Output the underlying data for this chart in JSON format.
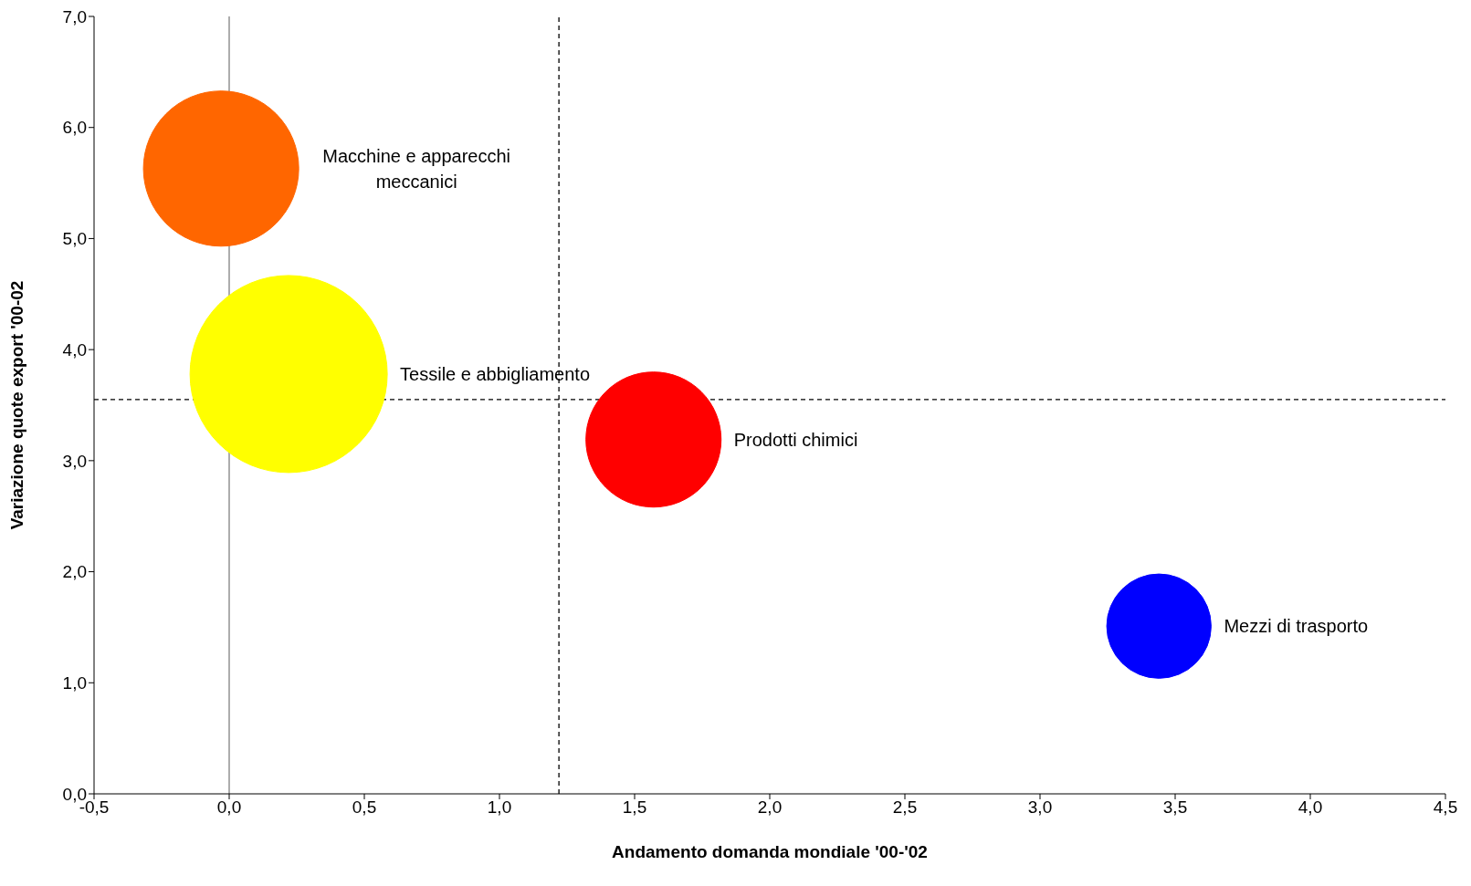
{
  "chart_data": {
    "type": "bubble",
    "xlabel": "Andamento domanda mondiale '00-'02",
    "ylabel": "Variazione quote export '00-02",
    "xlim": [
      -0.5,
      4.5
    ],
    "ylim": [
      0,
      7
    ],
    "xticks": [
      {
        "value": -0.5,
        "label": "-0,5"
      },
      {
        "value": 0,
        "label": "0,0"
      },
      {
        "value": 0.5,
        "label": "0,5"
      },
      {
        "value": 1,
        "label": "1,0"
      },
      {
        "value": 1.5,
        "label": "1,5"
      },
      {
        "value": 2,
        "label": "2,0"
      },
      {
        "value": 2.5,
        "label": "2,5"
      },
      {
        "value": 3,
        "label": "3,0"
      },
      {
        "value": 3.5,
        "label": "3,5"
      },
      {
        "value": 4,
        "label": "4,0"
      },
      {
        "value": 4.5,
        "label": "4,5"
      }
    ],
    "yticks": [
      {
        "value": 0,
        "label": "0,0"
      },
      {
        "value": 1,
        "label": "1,0"
      },
      {
        "value": 2,
        "label": "2,0"
      },
      {
        "value": 3,
        "label": "3,0"
      },
      {
        "value": 4,
        "label": "4,0"
      },
      {
        "value": 5,
        "label": "5,0"
      },
      {
        "value": 6,
        "label": "6,0"
      },
      {
        "value": 7,
        "label": "7,0"
      }
    ],
    "legend": false,
    "series": [
      {
        "name": "Macchine e apparecchi meccanici",
        "color": "#ff6600",
        "x": [
          -0.03
        ],
        "values": [
          5.63
        ],
        "sizes": [
          0.62
        ]
      },
      {
        "name": "Tessile e abbigliamento",
        "color": "#ffff00",
        "x": [
          0.22
        ],
        "values": [
          3.78
        ],
        "sizes": [
          1
        ]
      },
      {
        "name": "Prodotti chimici",
        "color": "#ff0000",
        "x": [
          1.57
        ],
        "values": [
          3.19
        ],
        "sizes": [
          0.47
        ]
      },
      {
        "name": "Mezzi di trasporto",
        "color": "#0000ff",
        "x": [
          3.44
        ],
        "values": [
          1.51
        ],
        "sizes": [
          0.28
        ]
      }
    ],
    "ref_lines": [
      {
        "axis": "x",
        "value": 0,
        "color": "#808080",
        "line_style": "solid"
      },
      {
        "axis": "x",
        "value": 1.22,
        "color": "#000000",
        "line_style": "dashed"
      },
      {
        "axis": "y",
        "value": 3.55,
        "color": "#000000",
        "line_style": "dashed"
      }
    ]
  }
}
